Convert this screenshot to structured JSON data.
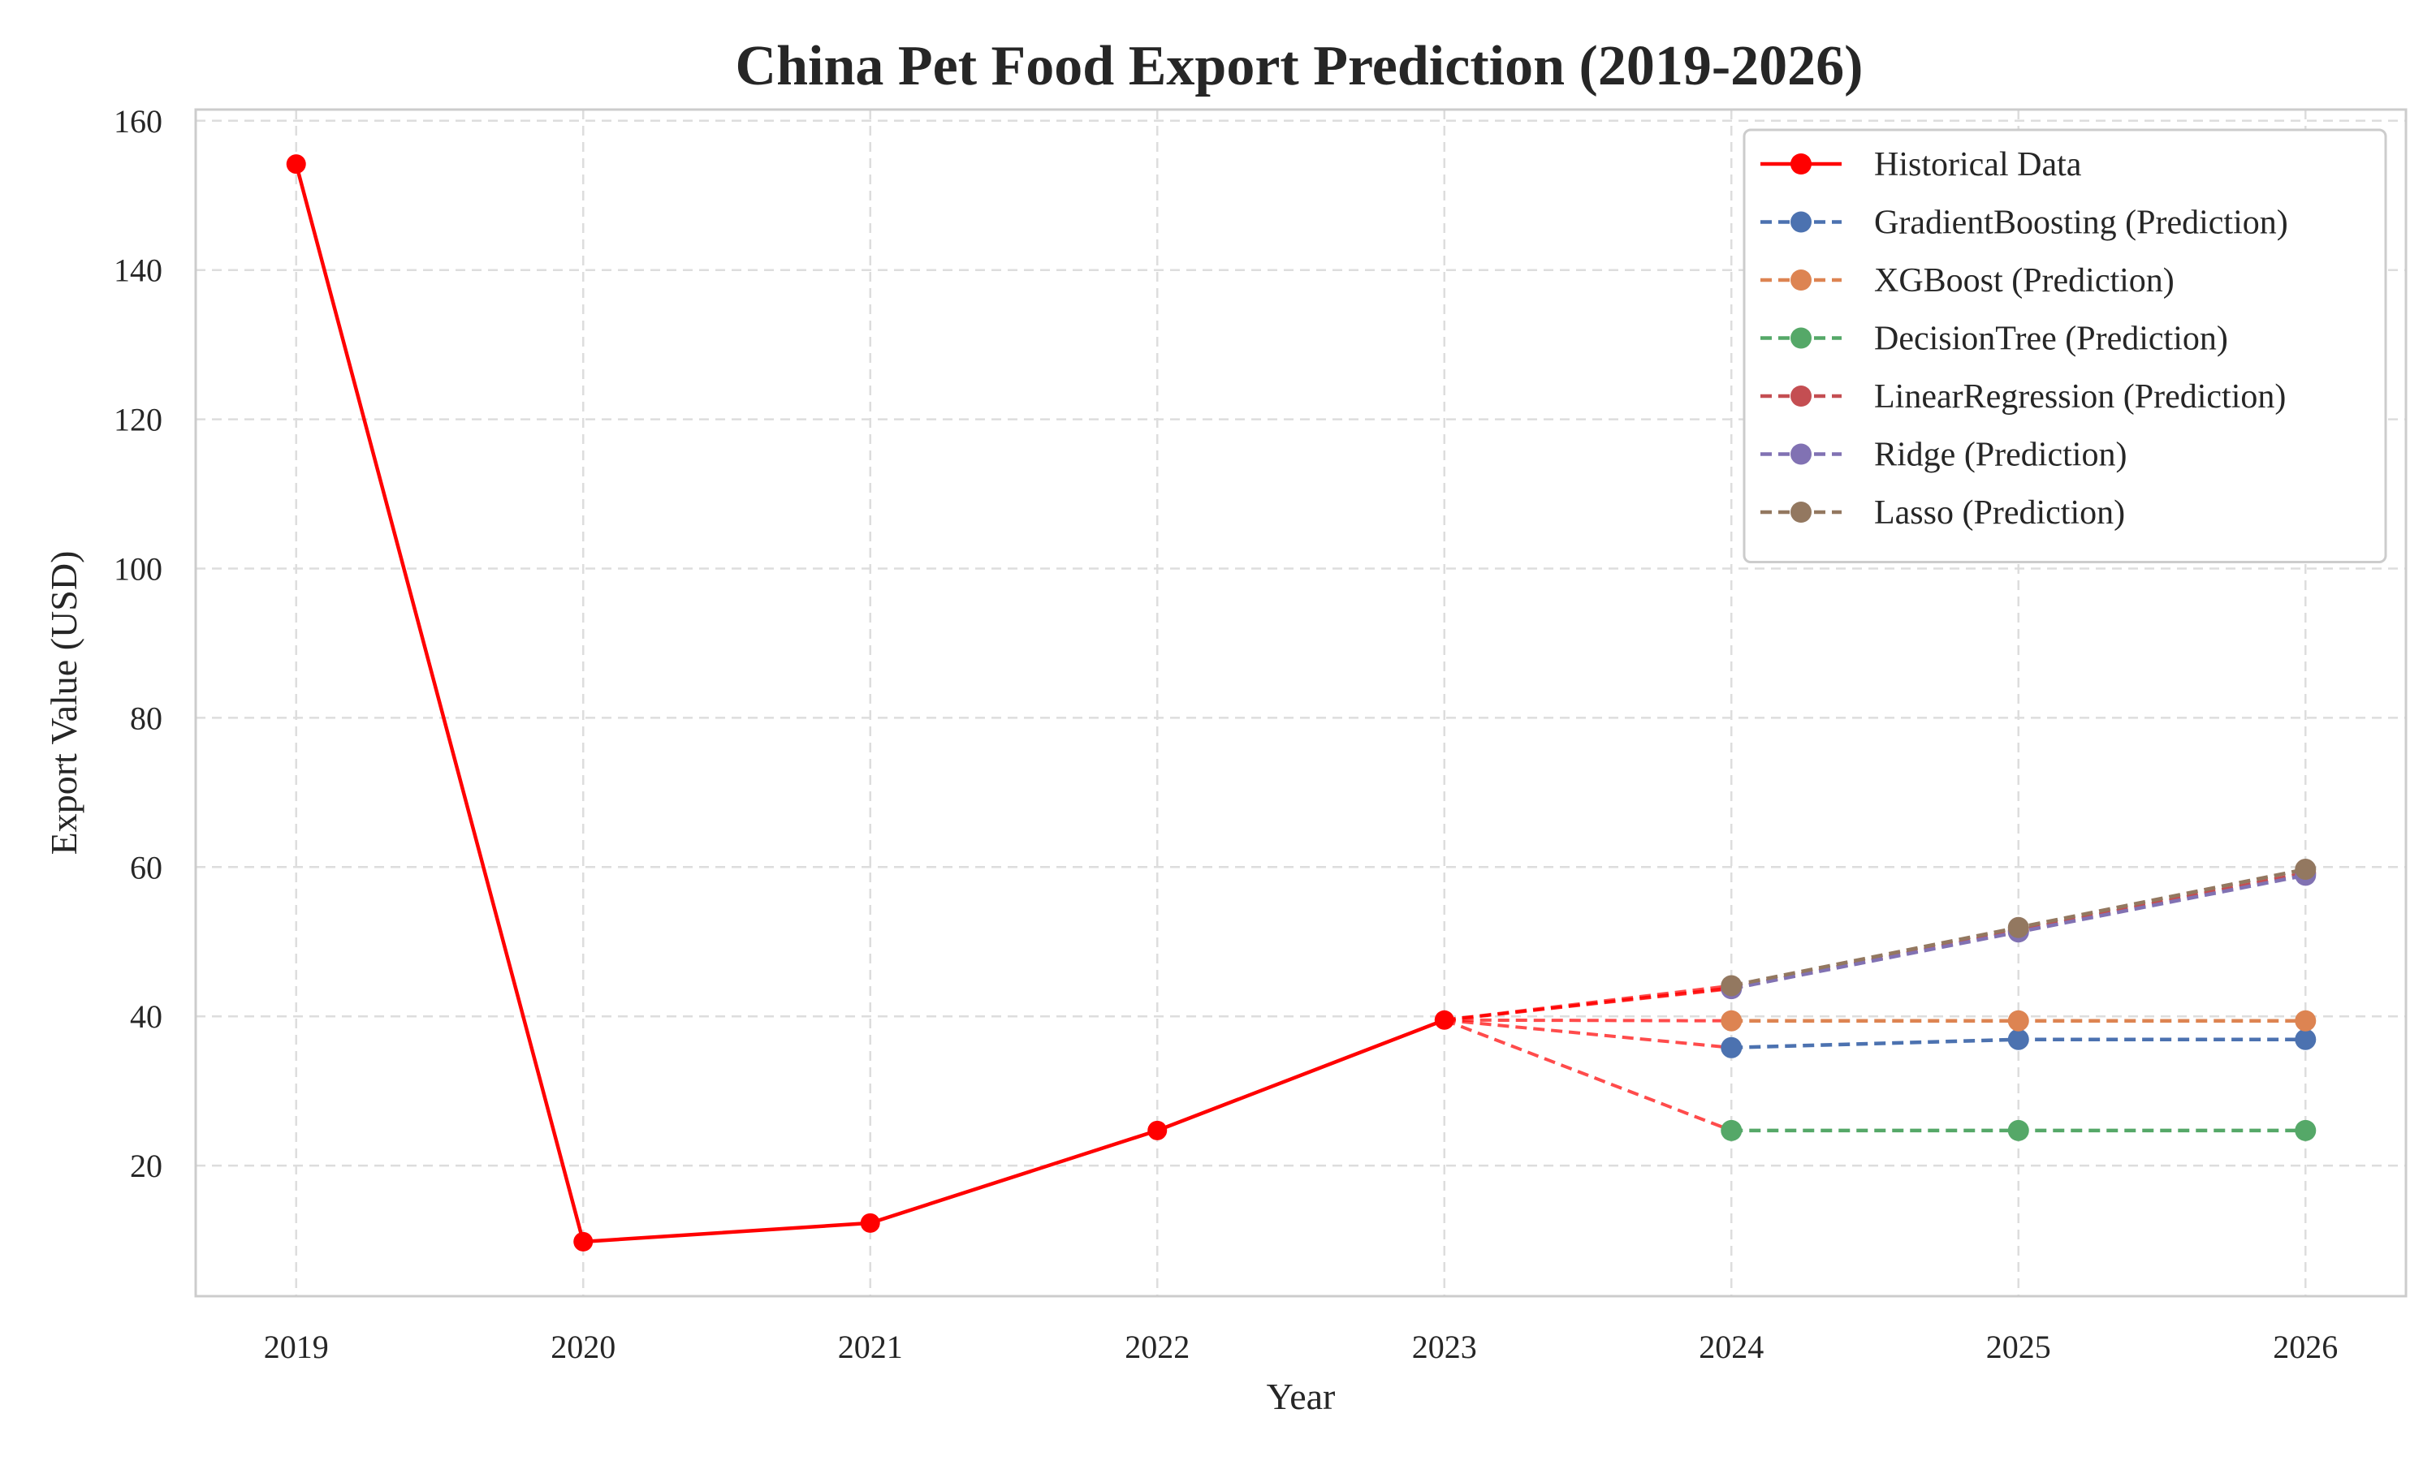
{
  "chart_data": {
    "type": "line",
    "title": "China Pet Food Export Prediction (2019-2026)",
    "xlabel": "Year",
    "ylabel": "Export Value (USD)",
    "x_ticks": [
      "2019",
      "2020",
      "2021",
      "2022",
      "2023",
      "2024",
      "2025",
      "2026"
    ],
    "y_ticks": [
      "20",
      "40",
      "60",
      "80",
      "100",
      "120",
      "140",
      "160"
    ],
    "xlim": [
      2018.65,
      2026.35
    ],
    "ylim": [
      2.5,
      161.5
    ],
    "grid": true,
    "legend_position": "top-right",
    "historical": {
      "name": "Historical Data",
      "color": "#ff0000",
      "x": [
        2019,
        2020,
        2021,
        2022,
        2023
      ],
      "y": [
        154.2,
        9.8,
        12.3,
        24.7,
        39.5
      ]
    },
    "predictions": [
      {
        "name": "GradientBoosting (Prediction)",
        "color": "#4c72b0",
        "x": [
          2024,
          2025,
          2026
        ],
        "y": [
          35.8,
          36.9,
          36.9
        ]
      },
      {
        "name": "XGBoost (Prediction)",
        "color": "#dd8452",
        "x": [
          2024,
          2025,
          2026
        ],
        "y": [
          39.4,
          39.4,
          39.4
        ]
      },
      {
        "name": "DecisionTree (Prediction)",
        "color": "#55a868",
        "x": [
          2024,
          2025,
          2026
        ],
        "y": [
          24.7,
          24.7,
          24.7
        ]
      },
      {
        "name": "LinearRegression (Prediction)",
        "color": "#c44e52",
        "x": [
          2024,
          2025,
          2026
        ],
        "y": [
          43.8,
          51.5,
          59.2
        ]
      },
      {
        "name": "Ridge (Prediction)",
        "color": "#8172b3",
        "x": [
          2024,
          2025,
          2026
        ],
        "y": [
          43.7,
          51.3,
          58.9
        ]
      },
      {
        "name": "Lasso (Prediction)",
        "color": "#937860",
        "x": [
          2024,
          2025,
          2026
        ],
        "y": [
          44.1,
          51.9,
          59.7
        ]
      }
    ],
    "connector_color": "#ff0000"
  }
}
